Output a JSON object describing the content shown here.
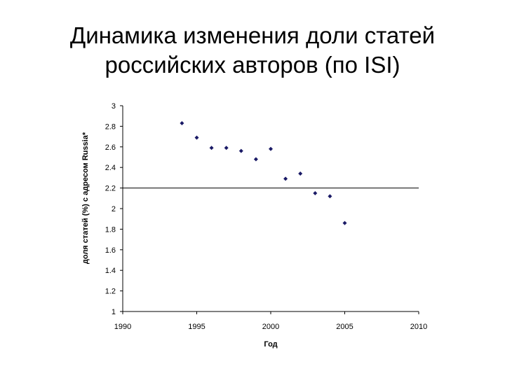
{
  "title_line1": "Динамика изменения доли статей",
  "title_line2": "российских авторов (по ISI)",
  "chart_data": {
    "type": "scatter",
    "xlabel": "Год",
    "ylabel": "доля статей (%) с адресом Russia*",
    "xlim": [
      1990,
      2010
    ],
    "ylim": [
      1,
      3
    ],
    "x_ticks": [
      "1990",
      "1995",
      "2000",
      "2005",
      "2010"
    ],
    "y_ticks": [
      "1",
      "1.2",
      "1.4",
      "1.6",
      "1.8",
      "2",
      "2.2",
      "2.4",
      "2.6",
      "2.8",
      "3"
    ],
    "grid": false,
    "reference_line_y": 2.2,
    "marker_color": "#1a1a66",
    "series": [
      {
        "points": [
          {
            "x": 1994,
            "y": 2.83
          },
          {
            "x": 1995,
            "y": 2.69
          },
          {
            "x": 1996,
            "y": 2.59
          },
          {
            "x": 1997,
            "y": 2.59
          },
          {
            "x": 1998,
            "y": 2.56
          },
          {
            "x": 1999,
            "y": 2.48
          },
          {
            "x": 2000,
            "y": 2.58
          },
          {
            "x": 2001,
            "y": 2.29
          },
          {
            "x": 2002,
            "y": 2.34
          },
          {
            "x": 2003,
            "y": 2.15
          },
          {
            "x": 2004,
            "y": 2.12
          },
          {
            "x": 2005,
            "y": 1.86
          }
        ]
      }
    ]
  }
}
